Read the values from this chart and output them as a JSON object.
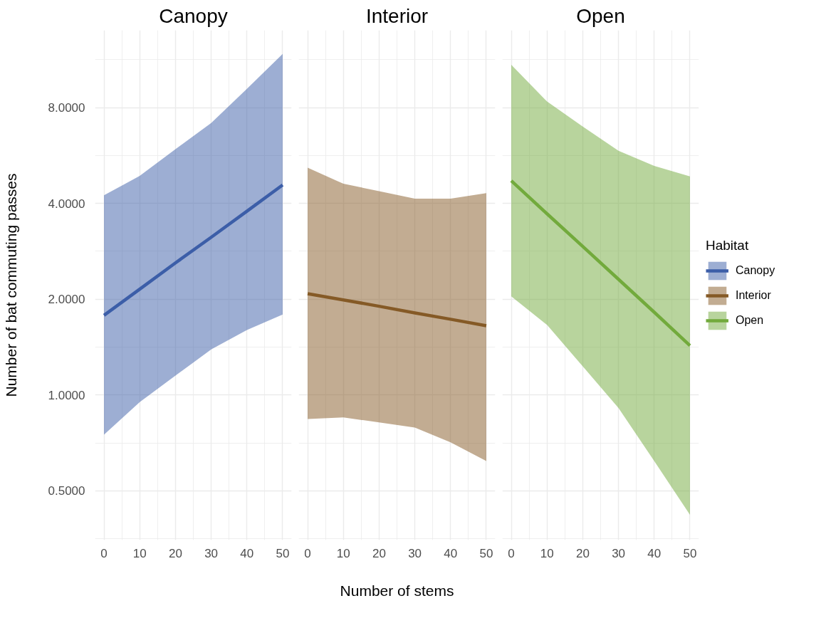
{
  "chart_data": [
    {
      "type": "line",
      "title": "Canopy",
      "ylabel": "Number of bat commuting passes",
      "x": [
        0,
        10,
        20,
        30,
        40,
        50
      ],
      "series": [
        {
          "name": "Canopy",
          "color": "#3c5ea8",
          "values": [
            1.78,
            2.15,
            2.6,
            3.13,
            3.78,
            4.57
          ],
          "lower": [
            0.75,
            0.95,
            1.15,
            1.39,
            1.6,
            1.79
          ],
          "upper": [
            4.24,
            4.88,
            5.92,
            7.16,
            9.16,
            11.8
          ]
        }
      ],
      "xlim": [
        -2.5,
        52.5
      ],
      "xticks": [
        0,
        10,
        20,
        30,
        40,
        50
      ],
      "ylim": [
        0.35,
        14
      ],
      "yticks": [
        {
          "value": 0.5,
          "label": "0.5000"
        },
        {
          "value": 1,
          "label": "1.0000"
        },
        {
          "value": 2,
          "label": "2.0000"
        },
        {
          "value": 4,
          "label": "4.0000"
        },
        {
          "value": 8,
          "label": "8.0000"
        }
      ],
      "log": true,
      "grid": true
    },
    {
      "type": "line",
      "title": "Interior",
      "xlabel": "Number of stems",
      "x": [
        0,
        10,
        20,
        30,
        40,
        50
      ],
      "series": [
        {
          "name": "Interior",
          "color": "#855a26",
          "values": [
            2.08,
            1.99,
            1.9,
            1.81,
            1.73,
            1.65
          ],
          "lower": [
            0.84,
            0.85,
            0.82,
            0.79,
            0.71,
            0.62
          ],
          "upper": [
            5.18,
            4.61,
            4.37,
            4.14,
            4.14,
            4.31
          ]
        }
      ],
      "xlim": [
        -2.5,
        52.5
      ],
      "xticks": [
        0,
        10,
        20,
        30,
        40,
        50
      ],
      "ylim": [
        0.35,
        14
      ],
      "yticks": [
        0.5,
        1,
        2,
        4,
        8
      ],
      "log": true,
      "grid": true,
      "tick_labels": "x"
    },
    {
      "type": "line",
      "title": "Open",
      "legend_title": "Habitat",
      "legend": "right",
      "x": [
        0,
        10,
        20,
        30,
        40,
        50
      ],
      "series": [
        {
          "name": "Open",
          "color": "#72aa3c",
          "values": [
            4.71,
            3.71,
            2.93,
            2.31,
            1.82,
            1.43
          ],
          "lower": [
            2.04,
            1.66,
            1.23,
            0.91,
            0.62,
            0.42
          ],
          "upper": [
            10.9,
            8.36,
            6.97,
            5.85,
            5.25,
            4.86
          ]
        }
      ],
      "xlim": [
        -2.5,
        52.5
      ],
      "xticks": [
        0,
        10,
        20,
        30,
        40,
        50
      ],
      "ylim": [
        0.35,
        14
      ],
      "yticks": [
        0.5,
        1,
        2,
        4,
        8
      ],
      "log": true,
      "grid": true,
      "tick_labels": "x"
    }
  ]
}
